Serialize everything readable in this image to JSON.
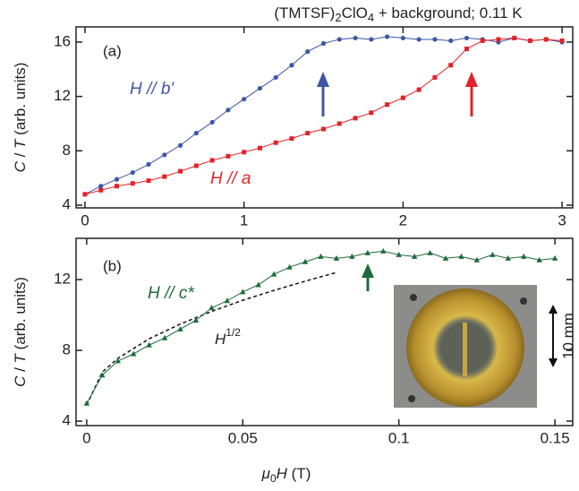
{
  "chart_data": [
    {
      "type": "scatter",
      "title_parts": [
        "(TMTSF)",
        "2",
        "ClO",
        "4",
        " + background; 0.11 K"
      ],
      "ylabel_parts": [
        "C",
        " / ",
        "T",
        " (arb. units)"
      ],
      "panel_label": "(a)",
      "xlim": [
        -0.056,
        3.067
      ],
      "ylim": [
        3.8,
        17.12
      ],
      "xticks": [
        0,
        1,
        2,
        3
      ],
      "yticks": [
        4,
        8,
        12,
        16
      ],
      "x": [
        0,
        0.1,
        0.2,
        0.3,
        0.4,
        0.5,
        0.6,
        0.7,
        0.8,
        0.9,
        1.0,
        1.1,
        1.2,
        1.3,
        1.4,
        1.5,
        1.6,
        1.7,
        1.8,
        1.9,
        2.0,
        2.1,
        2.2,
        2.3,
        2.4,
        2.5,
        2.6,
        2.7,
        2.8,
        2.9,
        3.0
      ],
      "series": [
        {
          "name": "H // b'",
          "color": "#3f56a6",
          "marker": "circle",
          "values": [
            4.8,
            5.4,
            5.9,
            6.4,
            7.0,
            7.7,
            8.4,
            9.3,
            10.1,
            11.0,
            11.8,
            12.6,
            13.4,
            14.3,
            15.3,
            15.9,
            16.2,
            16.3,
            16.2,
            16.4,
            16.3,
            16.2,
            16.2,
            16.1,
            16.3,
            16.2,
            16.0,
            16.3,
            16.1,
            16.2,
            16.0
          ]
        },
        {
          "name": "H // a",
          "color": "#e32228",
          "marker": "square",
          "values": [
            4.8,
            5.1,
            5.4,
            5.6,
            5.8,
            6.1,
            6.5,
            6.9,
            7.3,
            7.6,
            7.9,
            8.2,
            8.6,
            8.9,
            9.3,
            9.6,
            10.0,
            10.4,
            10.8,
            11.4,
            11.9,
            12.5,
            13.4,
            14.3,
            15.5,
            16.1,
            16.2,
            16.3,
            16.1,
            16.2,
            16.1
          ]
        }
      ]
    },
    {
      "type": "scatter",
      "ylabel_parts": [
        "C",
        " / ",
        "T",
        " (arb. units)"
      ],
      "xlabel_parts": [
        "μ",
        "0",
        "H",
        " (T)"
      ],
      "panel_label": "(b)",
      "xlim": [
        -0.0034,
        0.1557
      ],
      "ylim": [
        3.75,
        14.33
      ],
      "xticks": [
        0,
        0.05,
        0.1,
        0.15
      ],
      "yticks": [
        4,
        8,
        12
      ],
      "x": [
        0,
        0.005,
        0.01,
        0.015,
        0.02,
        0.025,
        0.03,
        0.035,
        0.04,
        0.045,
        0.05,
        0.055,
        0.06,
        0.065,
        0.07,
        0.075,
        0.08,
        0.085,
        0.09,
        0.095,
        0.1,
        0.105,
        0.11,
        0.115,
        0.12,
        0.125,
        0.13,
        0.135,
        0.14,
        0.145,
        0.15
      ],
      "series": [
        {
          "name": "H // c*",
          "color": "#1e6b3a",
          "marker": "triangle",
          "values": [
            5.0,
            6.6,
            7.4,
            7.8,
            8.3,
            8.7,
            9.2,
            9.7,
            10.4,
            10.8,
            11.3,
            11.7,
            12.3,
            12.7,
            13.0,
            13.3,
            13.2,
            13.3,
            13.5,
            13.6,
            13.4,
            13.3,
            13.5,
            13.2,
            13.3,
            13.1,
            13.4,
            13.2,
            13.3,
            13.1,
            13.2
          ]
        }
      ],
      "fit": {
        "label_parts": [
          "H",
          "1/2"
        ],
        "color": "#111111",
        "x": [
          0,
          0.005,
          0.01,
          0.02,
          0.03,
          0.04,
          0.05,
          0.06,
          0.07,
          0.08
        ],
        "values": [
          4.9,
          6.77,
          7.55,
          8.65,
          9.49,
          10.2,
          10.83,
          11.39,
          11.91,
          12.4
        ]
      },
      "inset_label": "10 mm"
    }
  ]
}
